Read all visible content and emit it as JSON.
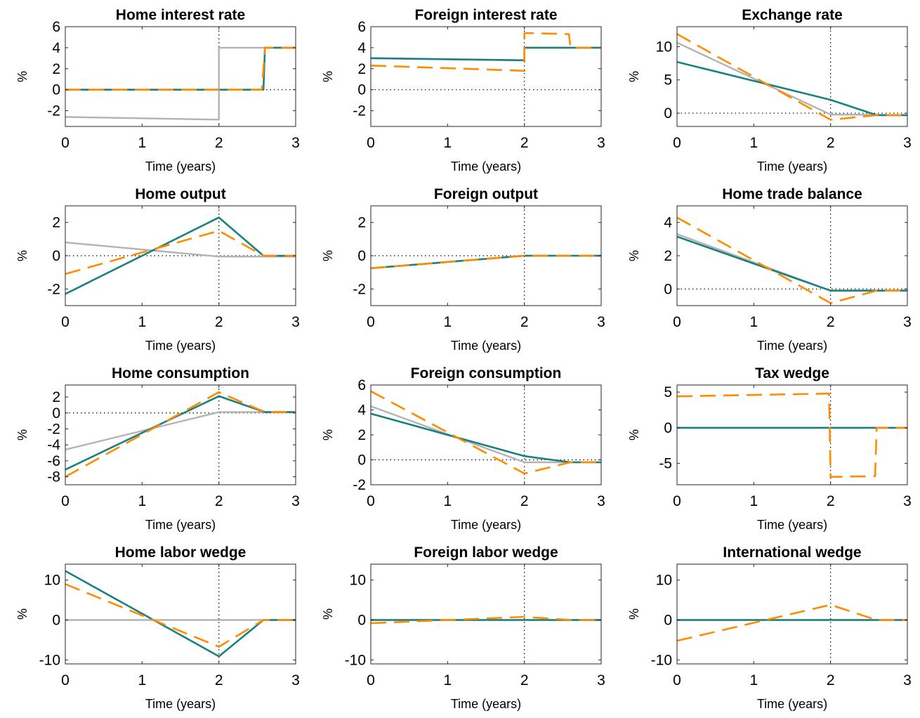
{
  "colors": {
    "grey_series": "#b3b3b3",
    "teal_series": "#1b8080",
    "orange_series": "#ff8c00",
    "reference": "#000000"
  },
  "chart_data": [
    {
      "type": "line",
      "title": "Home interest rate",
      "xlabel": "Time (years)",
      "ylabel": "%",
      "xlim": [
        0,
        3
      ],
      "ylim": [
        -3.5,
        6
      ],
      "xticks": [
        0,
        1,
        2,
        3
      ],
      "yticks": [
        -2,
        0,
        2,
        4,
        6
      ],
      "reference_lines": {
        "y": 0,
        "x": 2
      },
      "series": [
        {
          "color": "#b3b3b3",
          "dash": "solid",
          "x": [
            0,
            2,
            2,
            3
          ],
          "y": [
            -2.6,
            -2.85,
            4,
            4
          ]
        },
        {
          "color": "#1b8080",
          "dash": "solid",
          "x": [
            0,
            2.58,
            2.6,
            3
          ],
          "y": [
            0,
            0,
            4,
            4
          ]
        },
        {
          "color": "#ff8c00",
          "dash": "dashed",
          "x": [
            0,
            2.56,
            2.6,
            3
          ],
          "y": [
            0,
            0,
            4,
            4
          ]
        }
      ]
    },
    {
      "type": "line",
      "title": "Foreign interest rate",
      "xlabel": "Time (years)",
      "ylabel": "%",
      "xlim": [
        0,
        3
      ],
      "ylim": [
        -3.5,
        6
      ],
      "xticks": [
        0,
        1,
        2,
        3
      ],
      "yticks": [
        -2,
        0,
        2,
        4,
        6
      ],
      "reference_lines": {
        "y": 0,
        "x": 2
      },
      "series": [
        {
          "color": "#b3b3b3",
          "dash": "solid",
          "x": [
            0,
            2,
            2,
            3
          ],
          "y": [
            3.0,
            2.8,
            4,
            4
          ]
        },
        {
          "color": "#1b8080",
          "dash": "solid",
          "x": [
            0,
            2,
            2,
            3
          ],
          "y": [
            3.0,
            2.8,
            4,
            4
          ]
        },
        {
          "color": "#ff8c00",
          "dash": "dashed",
          "x": [
            0,
            2,
            2,
            2.58,
            2.6,
            3
          ],
          "y": [
            2.3,
            1.8,
            5.4,
            5.3,
            4,
            4
          ]
        }
      ]
    },
    {
      "type": "line",
      "title": "Exchange rate",
      "xlabel": "Time (years)",
      "ylabel": "%",
      "xlim": [
        0,
        3
      ],
      "ylim": [
        -2,
        13
      ],
      "xticks": [
        0,
        1,
        2,
        3
      ],
      "yticks": [
        0,
        5,
        10
      ],
      "reference_lines": {
        "y": 0,
        "x": 2
      },
      "series": [
        {
          "color": "#b3b3b3",
          "dash": "solid",
          "x": [
            0,
            2,
            3
          ],
          "y": [
            10.6,
            -0.2,
            -0.3
          ]
        },
        {
          "color": "#1b8080",
          "dash": "solid",
          "x": [
            0,
            2,
            2.6,
            3
          ],
          "y": [
            7.7,
            2.0,
            -0.3,
            -0.3
          ]
        },
        {
          "color": "#ff8c00",
          "dash": "dashed",
          "x": [
            0,
            2,
            2.6,
            3
          ],
          "y": [
            11.9,
            -1.0,
            -0.3,
            -0.3
          ]
        }
      ]
    },
    {
      "type": "line",
      "title": "Home output",
      "xlabel": "Time (years)",
      "ylabel": "%",
      "xlim": [
        0,
        3
      ],
      "ylim": [
        -3,
        3
      ],
      "xticks": [
        0,
        1,
        2,
        3
      ],
      "yticks": [
        -2,
        0,
        2
      ],
      "reference_lines": {
        "y": 0,
        "x": 2
      },
      "series": [
        {
          "color": "#b3b3b3",
          "dash": "solid",
          "x": [
            0,
            2,
            3
          ],
          "y": [
            0.8,
            -0.05,
            -0.05
          ]
        },
        {
          "color": "#1b8080",
          "dash": "solid",
          "x": [
            0,
            2,
            2.58,
            3
          ],
          "y": [
            -2.3,
            2.3,
            0,
            0
          ]
        },
        {
          "color": "#ff8c00",
          "dash": "dashed",
          "x": [
            0,
            2,
            2.58,
            3
          ],
          "y": [
            -1.1,
            1.5,
            0,
            0
          ]
        }
      ]
    },
    {
      "type": "line",
      "title": "Foreign output",
      "xlabel": "Time (years)",
      "ylabel": "%",
      "xlim": [
        0,
        3
      ],
      "ylim": [
        -3,
        3
      ],
      "xticks": [
        0,
        1,
        2,
        3
      ],
      "yticks": [
        -2,
        0,
        2
      ],
      "reference_lines": {
        "y": 0,
        "x": 2
      },
      "series": [
        {
          "color": "#b3b3b3",
          "dash": "solid",
          "x": [
            0,
            2,
            3
          ],
          "y": [
            -0.75,
            0,
            0
          ]
        },
        {
          "color": "#1b8080",
          "dash": "solid",
          "x": [
            0,
            2,
            3
          ],
          "y": [
            -0.75,
            0,
            0
          ]
        },
        {
          "color": "#ff8c00",
          "dash": "dashed",
          "x": [
            0,
            2,
            3
          ],
          "y": [
            -0.75,
            0,
            0
          ]
        }
      ]
    },
    {
      "type": "line",
      "title": "Home trade balance",
      "xlabel": "Time (years)",
      "ylabel": "%",
      "xlim": [
        0,
        3
      ],
      "ylim": [
        -1,
        5
      ],
      "xticks": [
        0,
        1,
        2,
        3
      ],
      "yticks": [
        0,
        2,
        4
      ],
      "reference_lines": {
        "y": 0,
        "x": 2
      },
      "series": [
        {
          "color": "#b3b3b3",
          "dash": "solid",
          "x": [
            0,
            2,
            3
          ],
          "y": [
            3.3,
            -0.1,
            -0.1
          ]
        },
        {
          "color": "#1b8080",
          "dash": "solid",
          "x": [
            0,
            2,
            3
          ],
          "y": [
            3.15,
            -0.1,
            -0.1
          ]
        },
        {
          "color": "#ff8c00",
          "dash": "dashed",
          "x": [
            0,
            2,
            2.6,
            3
          ],
          "y": [
            4.3,
            -0.85,
            -0.1,
            -0.1
          ]
        }
      ]
    },
    {
      "type": "line",
      "title": "Home consumption",
      "xlabel": "Time (years)",
      "ylabel": "%",
      "xlim": [
        0,
        3
      ],
      "ylim": [
        -9,
        3.5
      ],
      "xticks": [
        0,
        1,
        2,
        3
      ],
      "yticks": [
        -8,
        -6,
        -4,
        -2,
        0,
        2
      ],
      "reference_lines": {
        "y": 0,
        "x": 2
      },
      "series": [
        {
          "color": "#b3b3b3",
          "dash": "solid",
          "x": [
            0,
            2,
            3
          ],
          "y": [
            -4.6,
            0.1,
            0.1
          ]
        },
        {
          "color": "#1b8080",
          "dash": "solid",
          "x": [
            0,
            2,
            2.6,
            3
          ],
          "y": [
            -7.1,
            2.1,
            0.1,
            0.1
          ]
        },
        {
          "color": "#ff8c00",
          "dash": "dashed",
          "x": [
            0,
            2,
            2.6,
            3
          ],
          "y": [
            -8.0,
            2.6,
            0.1,
            0.1
          ]
        }
      ]
    },
    {
      "type": "line",
      "title": "Foreign consumption",
      "xlabel": "Time (years)",
      "ylabel": "%",
      "xlim": [
        0,
        3
      ],
      "ylim": [
        -2,
        6
      ],
      "xticks": [
        0,
        1,
        2,
        3
      ],
      "yticks": [
        -2,
        0,
        2,
        4,
        6
      ],
      "reference_lines": {
        "y": 0,
        "x": 2
      },
      "series": [
        {
          "color": "#b3b3b3",
          "dash": "solid",
          "x": [
            0,
            2,
            3
          ],
          "y": [
            4.3,
            -0.2,
            -0.2
          ]
        },
        {
          "color": "#1b8080",
          "dash": "solid",
          "x": [
            0,
            2,
            2.6,
            3
          ],
          "y": [
            3.7,
            0.3,
            -0.2,
            -0.2
          ]
        },
        {
          "color": "#ff8c00",
          "dash": "dashed",
          "x": [
            0,
            2,
            2.6,
            3
          ],
          "y": [
            5.5,
            -1.1,
            -0.2,
            -0.2
          ]
        }
      ]
    },
    {
      "type": "line",
      "title": "Tax wedge",
      "xlabel": "Time (years)",
      "ylabel": "%",
      "xlim": [
        0,
        3
      ],
      "ylim": [
        -8,
        6
      ],
      "xticks": [
        0,
        1,
        2,
        3
      ],
      "yticks": [
        -5,
        0,
        5
      ],
      "reference_lines": {
        "y": 0,
        "x": 2
      },
      "series": [
        {
          "color": "#b3b3b3",
          "dash": "solid",
          "x": [
            0,
            3
          ],
          "y": [
            0,
            0
          ]
        },
        {
          "color": "#1b8080",
          "dash": "solid",
          "x": [
            0,
            3
          ],
          "y": [
            0,
            0
          ]
        },
        {
          "color": "#ff8c00",
          "dash": "dashed",
          "x": [
            0,
            1.98,
            2,
            2.58,
            2.6,
            3
          ],
          "y": [
            4.4,
            4.8,
            -6.9,
            -6.8,
            0,
            0
          ]
        }
      ]
    },
    {
      "type": "line",
      "title": "Home labor wedge",
      "xlabel": "Time (years)",
      "ylabel": "%",
      "xlim": [
        0,
        3
      ],
      "ylim": [
        -11,
        14
      ],
      "xticks": [
        0,
        1,
        2,
        3
      ],
      "yticks": [
        -10,
        0,
        10
      ],
      "reference_lines": {
        "x": 2
      },
      "series": [
        {
          "color": "#b3b3b3",
          "dash": "solid",
          "x": [
            0,
            3
          ],
          "y": [
            0,
            0
          ]
        },
        {
          "color": "#1b8080",
          "dash": "solid",
          "x": [
            0,
            2,
            2.58,
            3
          ],
          "y": [
            12.3,
            -9.1,
            0,
            0
          ]
        },
        {
          "color": "#ff8c00",
          "dash": "dashed",
          "x": [
            0,
            2,
            2.58,
            3
          ],
          "y": [
            9.0,
            -6.7,
            0,
            0
          ]
        }
      ]
    },
    {
      "type": "line",
      "title": "Foreign labor wedge",
      "xlabel": "Time (years)",
      "ylabel": "%",
      "xlim": [
        0,
        3
      ],
      "ylim": [
        -11,
        14
      ],
      "xticks": [
        0,
        1,
        2,
        3
      ],
      "yticks": [
        -10,
        0,
        10
      ],
      "reference_lines": {
        "x": 2
      },
      "series": [
        {
          "color": "#b3b3b3",
          "dash": "solid",
          "x": [
            0,
            3
          ],
          "y": [
            0,
            0
          ]
        },
        {
          "color": "#1b8080",
          "dash": "solid",
          "x": [
            0,
            3
          ],
          "y": [
            0,
            0
          ]
        },
        {
          "color": "#ff8c00",
          "dash": "dashed",
          "x": [
            0,
            2,
            2.6,
            3
          ],
          "y": [
            -0.8,
            0.8,
            0,
            0
          ]
        }
      ]
    },
    {
      "type": "line",
      "title": "International wedge",
      "xlabel": "Time (years)",
      "ylabel": "%",
      "xlim": [
        0,
        3
      ],
      "ylim": [
        -11,
        14
      ],
      "xticks": [
        0,
        1,
        2,
        3
      ],
      "yticks": [
        -10,
        0,
        10
      ],
      "reference_lines": {
        "x": 2
      },
      "series": [
        {
          "color": "#b3b3b3",
          "dash": "solid",
          "x": [
            0,
            3
          ],
          "y": [
            0,
            0
          ]
        },
        {
          "color": "#1b8080",
          "dash": "solid",
          "x": [
            0,
            3
          ],
          "y": [
            0,
            0
          ]
        },
        {
          "color": "#ff8c00",
          "dash": "dashed",
          "x": [
            0,
            2,
            2.6,
            3
          ],
          "y": [
            -5.2,
            3.8,
            0,
            0
          ]
        }
      ]
    }
  ]
}
